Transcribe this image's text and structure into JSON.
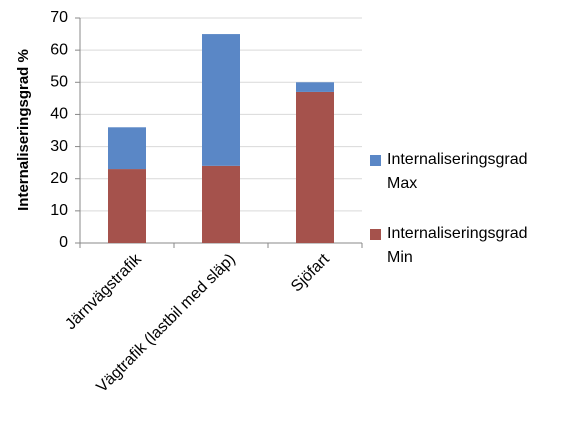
{
  "chart_data": {
    "type": "stacked-bar",
    "y_label": "Internaliseringsgrad %",
    "categories": [
      "Järnvägstrafik",
      "Vägtrafik (lastbil med släp)",
      "Sjöfart"
    ],
    "series": [
      {
        "name": "Internaliseringsgrad Min",
        "color": "#a5524c",
        "values": [
          23,
          24,
          47
        ]
      },
      {
        "name": "Internaliseringsgrad Max",
        "color": "#5a87c6",
        "values": [
          13,
          41,
          3
        ]
      }
    ],
    "ylim": [
      0,
      70
    ],
    "yticks": [
      0,
      10,
      20,
      30,
      40,
      50,
      60,
      70
    ],
    "grid": true
  }
}
